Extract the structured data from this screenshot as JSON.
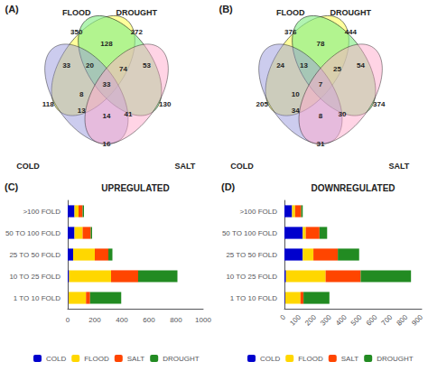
{
  "chart_data": [
    {
      "type": "venn",
      "title": "(A)",
      "series": [
        {
          "name": "FLOOD",
          "color": "#FFFF66"
        },
        {
          "name": "DROUGHT",
          "color": "#88EE88"
        },
        {
          "name": "COLD",
          "color": "#9999DD"
        },
        {
          "name": "SALT",
          "color": "#FFAACC"
        }
      ],
      "values": [
        350,
        272,
        118,
        130,
        128,
        33,
        53,
        16,
        20,
        74,
        13,
        41,
        8,
        33,
        14
      ]
    },
    {
      "type": "venn",
      "title": "(B)",
      "series": [
        {
          "name": "FLOOD",
          "color": "#FFFF66"
        },
        {
          "name": "DROUGHT",
          "color": "#88EE88"
        },
        {
          "name": "COLD",
          "color": "#9999DD"
        },
        {
          "name": "SALT",
          "color": "#FFAACC"
        }
      ],
      "values": [
        376,
        444,
        205,
        374,
        78,
        24,
        54,
        31,
        13,
        25,
        34,
        30,
        10,
        7,
        8
      ]
    },
    {
      "type": "bar",
      "orientation": "horizontal",
      "stacked": true,
      "title": "UPREGULATED",
      "annotations": [
        "(C)"
      ],
      "categories": [
        ">100 FOLD",
        "50 TO 100 FOLD",
        "25 TO 50 FOLD",
        "10 TO 25 FOLD",
        "1 TO 10 FOLD"
      ],
      "series": [
        {
          "name": "COLD",
          "color": "#0000CD",
          "values": [
            50,
            50,
            40,
            10,
            5
          ]
        },
        {
          "name": "FLOOD",
          "color": "#FFD700",
          "values": [
            30,
            60,
            160,
            310,
            130
          ]
        },
        {
          "name": "SALT",
          "color": "#FF4500",
          "values": [
            30,
            60,
            100,
            200,
            30
          ]
        },
        {
          "name": "DROUGHT",
          "color": "#228B22",
          "values": [
            10,
            10,
            30,
            290,
            230
          ]
        }
      ],
      "xlim": [
        0,
        1000
      ],
      "xticks": [
        0,
        200,
        400,
        600,
        800,
        1000
      ],
      "legend": "bottom",
      "grid": false
    },
    {
      "type": "bar",
      "orientation": "horizontal",
      "stacked": true,
      "title": "DOWNREGULATED",
      "annotations": [
        "(D)"
      ],
      "categories": [
        ">100 FOLD",
        "50 TO 100 FOLD",
        "25 TO 50 FOLD",
        "10 TO 25 FOLD",
        "1 TO 10 FOLD"
      ],
      "series": [
        {
          "name": "COLD",
          "color": "#0000CD",
          "values": [
            50,
            120,
            120,
            10,
            5
          ]
        },
        {
          "name": "FLOOD",
          "color": "#FFD700",
          "values": [
            20,
            20,
            70,
            260,
            100
          ]
        },
        {
          "name": "SALT",
          "color": "#FF4500",
          "values": [
            40,
            90,
            160,
            230,
            20
          ]
        },
        {
          "name": "DROUGHT",
          "color": "#228B22",
          "values": [
            10,
            50,
            140,
            330,
            170
          ]
        }
      ],
      "xlim": [
        0,
        900
      ],
      "xticks": [
        0,
        100,
        200,
        300,
        400,
        500,
        600,
        700,
        800,
        900
      ],
      "legend": "bottom",
      "grid": false
    }
  ]
}
